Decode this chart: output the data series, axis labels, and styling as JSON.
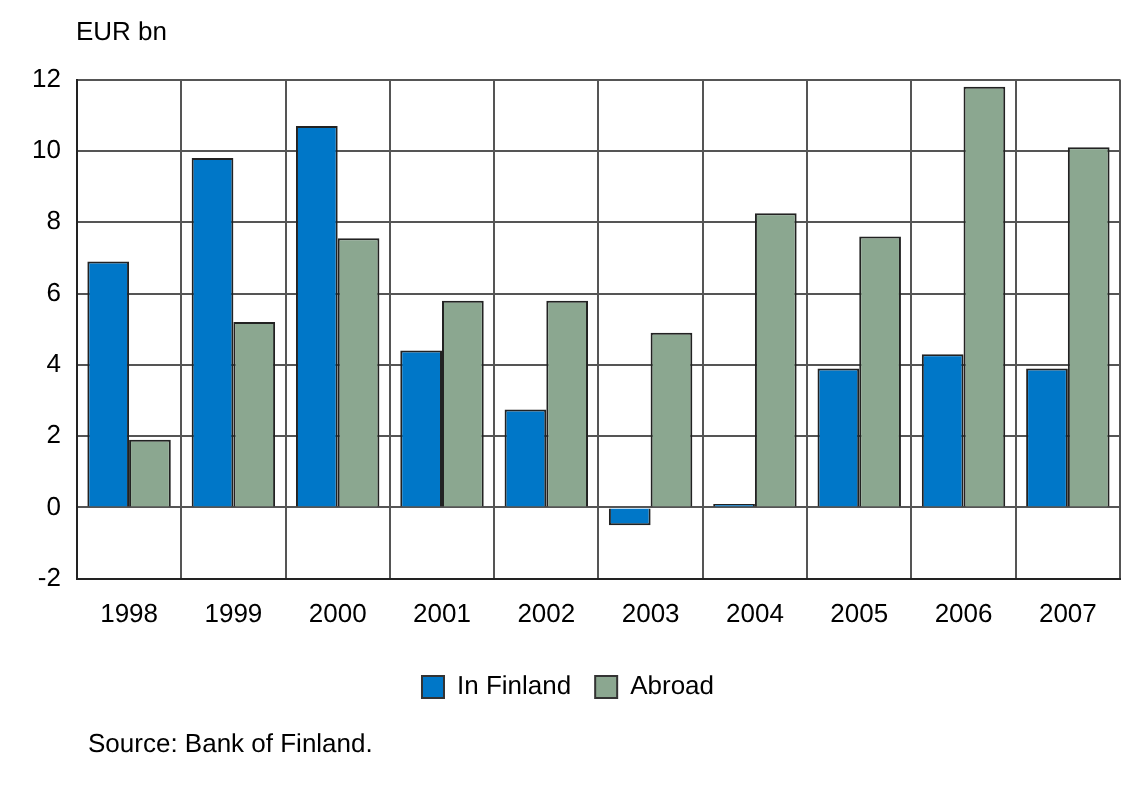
{
  "chart_data": {
    "type": "bar",
    "ylabel": "EUR bn",
    "categories": [
      "1998",
      "1999",
      "2000",
      "2001",
      "2002",
      "2003",
      "2004",
      "2005",
      "2006",
      "2007"
    ],
    "series": [
      {
        "name": "In Finland",
        "color": "#0077c8",
        "values": [
          6.9,
          9.8,
          10.7,
          4.4,
          2.75,
          -0.5,
          0.1,
          3.9,
          4.3,
          3.9
        ]
      },
      {
        "name": "Abroad",
        "color": "#8ba790",
        "values": [
          1.9,
          5.2,
          7.55,
          5.8,
          5.8,
          4.9,
          8.25,
          7.6,
          11.8,
          10.1
        ]
      }
    ],
    "ylim": [
      -2,
      12
    ],
    "yticks": [
      -2,
      0,
      2,
      4,
      6,
      8,
      10,
      12
    ],
    "grid": true,
    "legend": "bottom",
    "annotations": [
      "Source: Bank of Finland."
    ]
  }
}
